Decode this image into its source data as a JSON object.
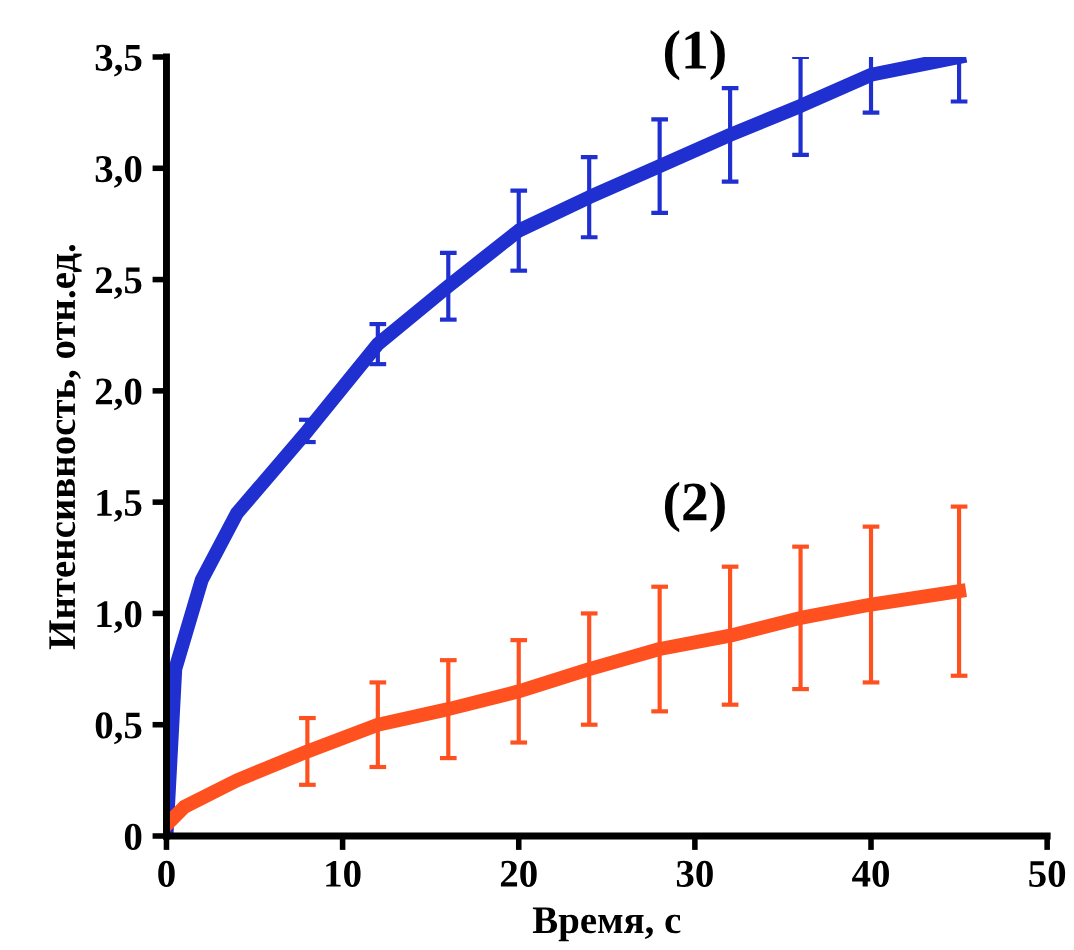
{
  "chart_data": {
    "type": "line",
    "xlabel": "Время, с",
    "ylabel": "Интенсивность, отн.ед.",
    "xlim": [
      0,
      50
    ],
    "xticks": [
      0,
      10,
      20,
      30,
      40,
      50
    ],
    "ylim": [
      0,
      3.5
    ],
    "yticks": [
      0,
      {
        "value": 0.5,
        "label": "0,5"
      },
      {
        "value": 1.0,
        "label": "1,0"
      },
      {
        "value": 1.5,
        "label": "1,5"
      },
      {
        "value": 2.0,
        "label": "2,0"
      },
      {
        "value": 2.5,
        "label": "2,5"
      },
      {
        "value": 3.0,
        "label": "3,0"
      },
      {
        "value": 3.5,
        "label": "3,5"
      }
    ],
    "grid": false,
    "marker": "none",
    "line_style": "solid",
    "annotations": [
      "(1)",
      "(2)"
    ],
    "series": [
      {
        "color": "#1f2fd0",
        "x": [
          0,
          0.5,
          2,
          4,
          8,
          12,
          16,
          20,
          24,
          28,
          32,
          36,
          40,
          45
        ],
        "values": [
          0,
          0.75,
          1.15,
          1.45,
          1.82,
          2.21,
          2.47,
          2.72,
          2.87,
          3.01,
          3.15,
          3.28,
          3.42,
          3.5
        ],
        "errors": [
          null,
          null,
          null,
          null,
          0.05,
          0.09,
          0.15,
          0.18,
          0.18,
          0.21,
          0.21,
          0.22,
          0.17,
          0.2
        ]
      },
      {
        "color": "#ff5020",
        "x": [
          0,
          1,
          4,
          8,
          12,
          16,
          20,
          24,
          28,
          32,
          36,
          40,
          45
        ],
        "values": [
          0.05,
          0.13,
          0.25,
          0.38,
          0.5,
          0.57,
          0.65,
          0.75,
          0.84,
          0.9,
          0.98,
          1.04,
          1.1
        ],
        "errors": [
          null,
          null,
          null,
          0.15,
          0.19,
          0.22,
          0.23,
          0.25,
          0.28,
          0.31,
          0.32,
          0.35,
          0.38
        ]
      }
    ]
  }
}
